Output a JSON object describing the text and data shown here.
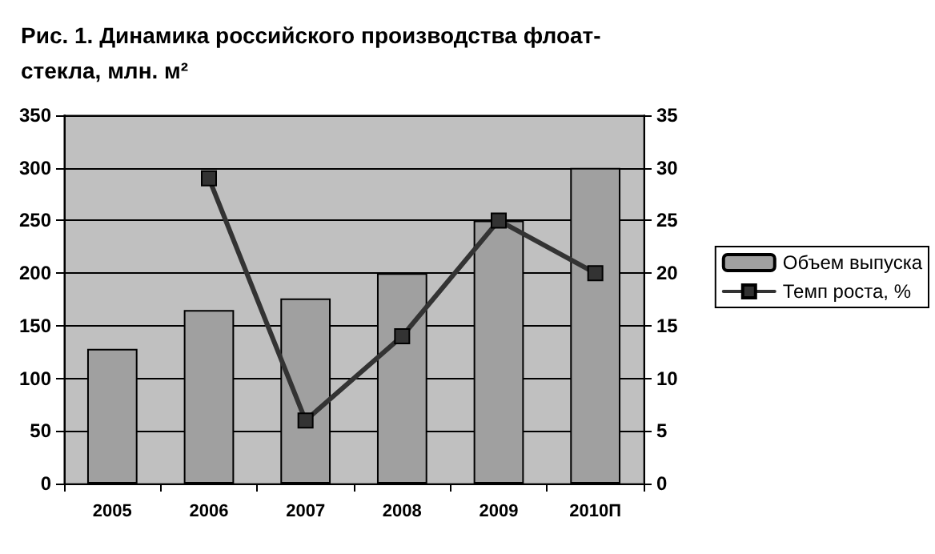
{
  "chart_data": {
    "type": "bar",
    "title": "Рис. 1. Динамика российского производства флоат-\nстекла, млн. м²",
    "categories": [
      "2005",
      "2006",
      "2007",
      "2008",
      "2009",
      "2010П"
    ],
    "series": [
      {
        "name": "Объем выпуска",
        "color": "#a0a0a0",
        "values": [
          128,
          165,
          176,
          200,
          250,
          300
        ]
      },
      {
        "name": "Темп роста, %",
        "type": "line",
        "axis": "y2",
        "color": "#333333",
        "marker": "square",
        "values": [
          null,
          29,
          6,
          14,
          25,
          20
        ]
      }
    ],
    "ylim": [
      0,
      350
    ],
    "yticks": [
      0,
      50,
      100,
      150,
      200,
      250,
      300,
      350
    ],
    "y2lim": [
      0,
      35
    ],
    "y2ticks": [
      0,
      5,
      10,
      15,
      20,
      25,
      30,
      35
    ],
    "grid": "y",
    "legend": "right"
  }
}
